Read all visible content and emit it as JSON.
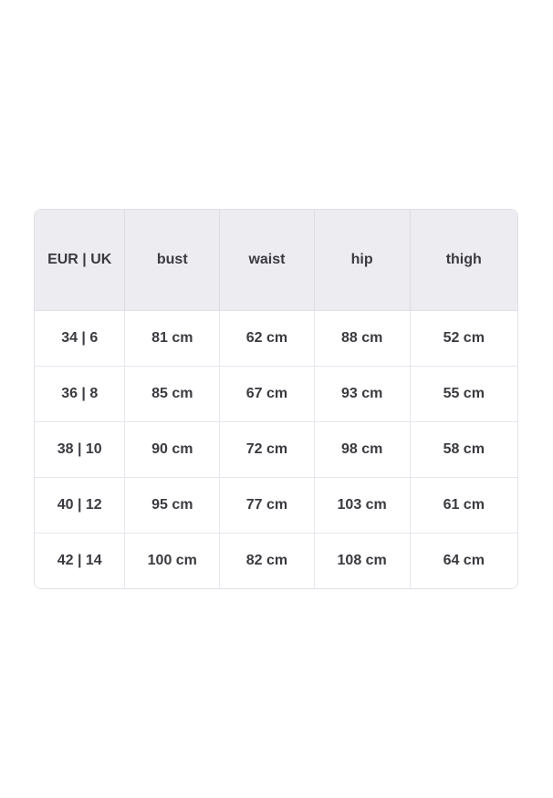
{
  "size_chart": {
    "columns": [
      "EUR | UK",
      "bust",
      "waist",
      "hip",
      "thigh"
    ],
    "rows": [
      [
        "34 | 6",
        "81 cm",
        "62 cm",
        "88 cm",
        "52 cm"
      ],
      [
        "36 | 8",
        "85 cm",
        "67 cm",
        "93 cm",
        "55 cm"
      ],
      [
        "38 | 10",
        "90 cm",
        "72 cm",
        "98 cm",
        "58 cm"
      ],
      [
        "40 | 12",
        "95 cm",
        "77 cm",
        "103 cm",
        "61 cm"
      ],
      [
        "42 | 14",
        "100 cm",
        "82 cm",
        "108 cm",
        "64 cm"
      ]
    ]
  },
  "colors": {
    "page_bg": "#ffffff",
    "header_bg": "#edecf1",
    "outer_border": "#e2e0e7",
    "grid_line": "#e8e6ed",
    "text": "#3b3a40"
  }
}
